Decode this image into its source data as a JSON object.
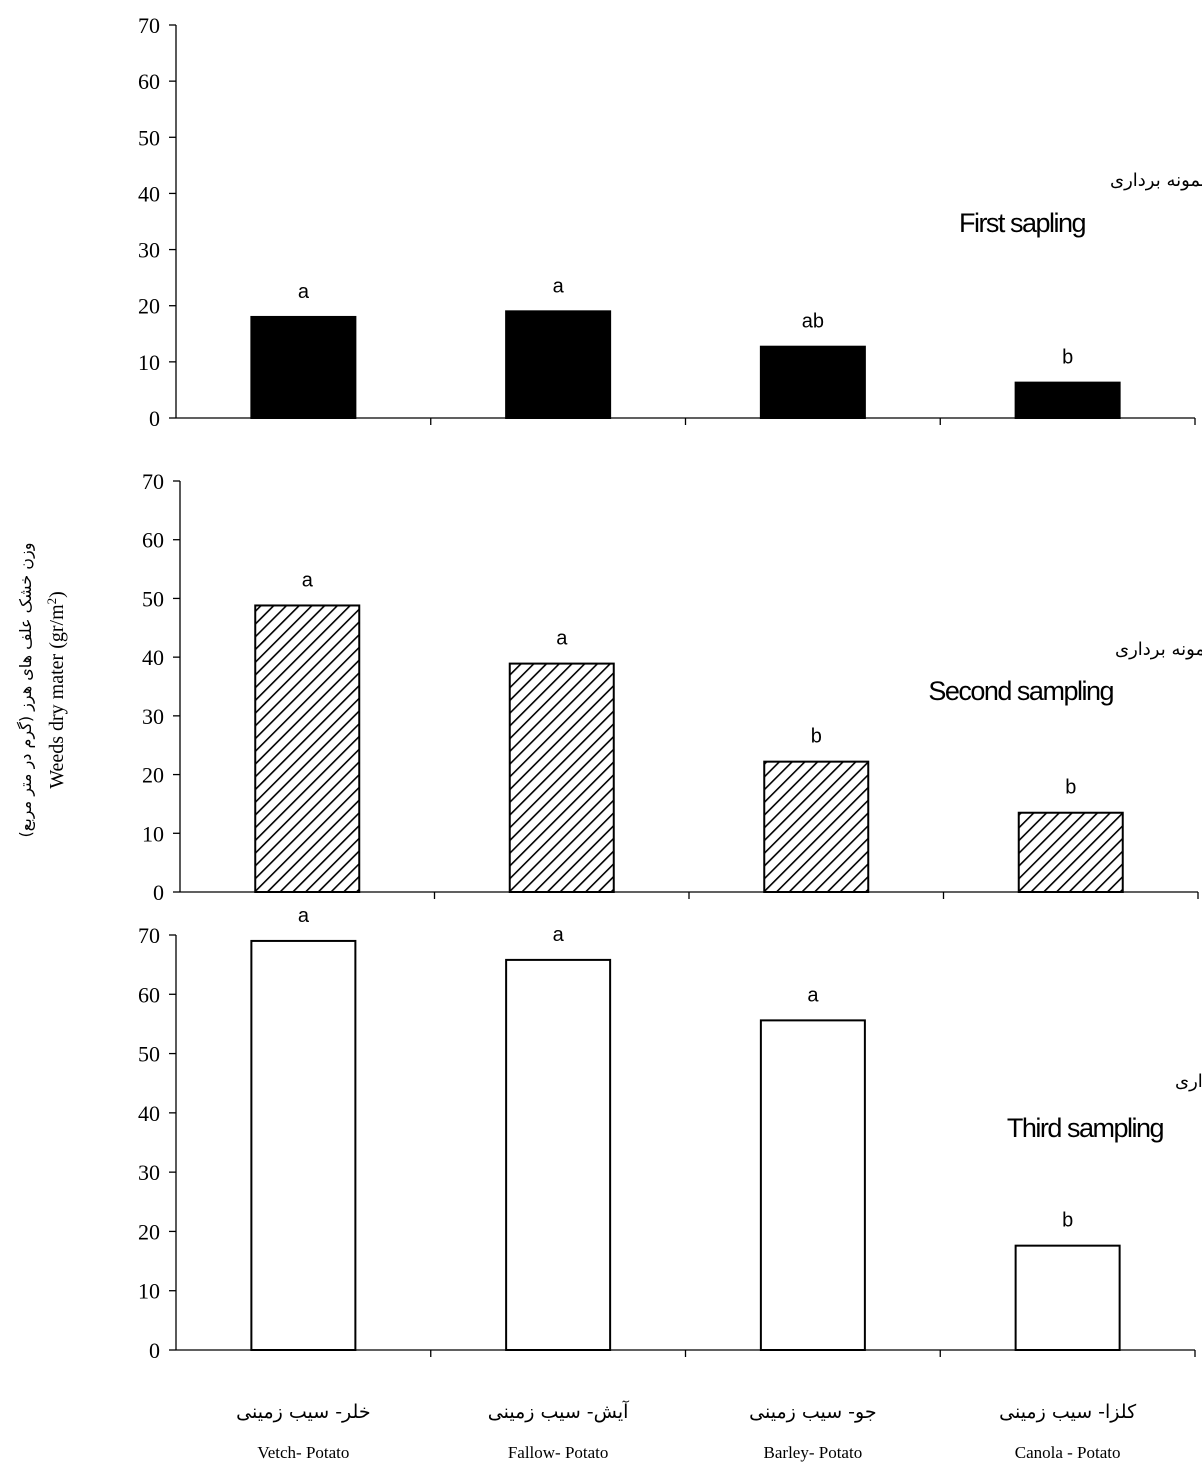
{
  "figure": {
    "ylabel_en": "Weeds dry mater (gr/m",
    "ylabel_sup": "2",
    "ylabel_close": ")",
    "ylabel_fa": "وزن خشک علف های هرز (گرم در متر مربع)",
    "categories_fa": [
      "خلر- سیب زمینی",
      "آیش- سیب زمینی",
      "جو- سیب زمینی",
      "کلزا- سیب زمینی"
    ],
    "categories_en": [
      "Vetch- Potato",
      "Fallow- Potato",
      "Barley- Potato",
      "Canola - Potato"
    ]
  },
  "chart_data": [
    {
      "type": "bar",
      "title": "First sapling",
      "title_fa": "مرحله اول نمونه برداری",
      "categories": [
        "Vetch- Potato",
        "Fallow- Potato",
        "Barley- Potato",
        "Canola - Potato"
      ],
      "values": [
        18,
        19,
        12.7,
        6.3
      ],
      "significance": [
        "a",
        "a",
        "ab",
        "b"
      ],
      "fill": "solid",
      "fill_color": "#000000",
      "ylim": [
        0,
        70
      ],
      "yticks": [
        0,
        10,
        20,
        30,
        40,
        50,
        60,
        70
      ]
    },
    {
      "type": "bar",
      "title": "Second sampling",
      "title_fa": "مرحله دوم نمونه برداری",
      "categories": [
        "Vetch- Potato",
        "Fallow- Potato",
        "Barley- Potato",
        "Canola - Potato"
      ],
      "values": [
        48.8,
        38.9,
        22.2,
        13.5
      ],
      "significance": [
        "a",
        "a",
        "b",
        "b"
      ],
      "fill": "hatched",
      "fill_color": "#000000",
      "ylim": [
        0,
        70
      ],
      "yticks": [
        0,
        10,
        20,
        30,
        40,
        50,
        60,
        70
      ]
    },
    {
      "type": "bar",
      "title": "Third sampling",
      "title_fa": "مرحله سوم نمونه برداری",
      "categories": [
        "Vetch- Potato",
        "Fallow- Potato",
        "Barley- Potato",
        "Canola - Potato"
      ],
      "values": [
        69,
        65.8,
        55.6,
        17.6
      ],
      "significance": [
        "a",
        "a",
        "a",
        "b"
      ],
      "fill": "empty",
      "fill_color": "#ffffff",
      "ylim": [
        0,
        70
      ],
      "yticks": [
        0,
        10,
        20,
        30,
        40,
        50,
        60,
        70
      ]
    }
  ]
}
